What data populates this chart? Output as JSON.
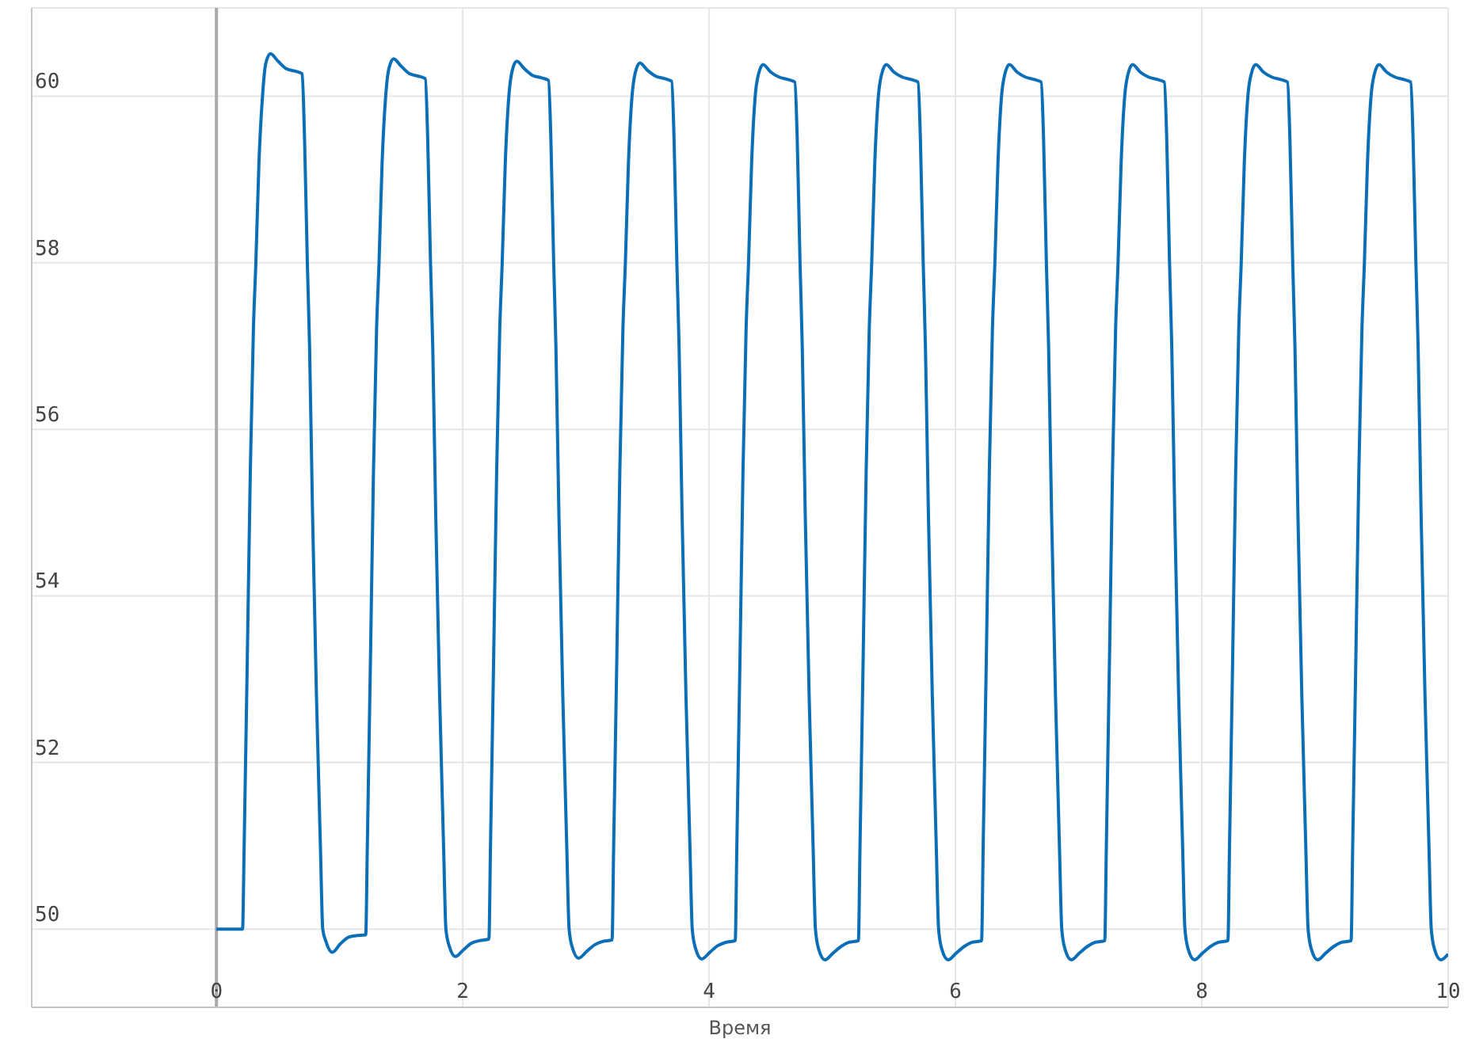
{
  "chart_data": {
    "type": "line",
    "xlabel": "Время",
    "x": [
      0,
      0.212,
      0.225,
      0.25,
      0.275,
      0.3,
      0.32,
      0.345,
      0.374,
      0.4,
      0.438,
      0.5,
      0.567,
      0.64,
      0.696,
      0.715,
      0.738,
      0.756,
      0.78,
      0.812,
      0.844,
      0.863,
      0.889,
      0.94,
      1.005,
      1.07,
      1.134,
      1.212,
      1.225,
      1.25,
      1.275,
      1.3,
      1.32,
      1.345,
      1.374,
      1.4,
      1.438,
      1.5,
      1.567,
      1.64,
      1.696,
      1.715,
      1.738,
      1.756,
      1.78,
      1.812,
      1.844,
      1.863,
      1.889,
      1.94,
      2.005,
      2.07,
      2.134,
      2.212,
      2.225,
      2.25,
      2.275,
      2.3,
      2.32,
      2.345,
      2.374,
      2.4,
      2.438,
      2.5,
      2.567,
      2.64,
      2.696,
      2.715,
      2.738,
      2.756,
      2.78,
      2.812,
      2.844,
      2.863,
      2.889,
      2.94,
      3.005,
      3.07,
      3.134,
      3.212,
      3.225,
      3.25,
      3.275,
      3.3,
      3.32,
      3.345,
      3.374,
      3.4,
      3.438,
      3.5,
      3.567,
      3.64,
      3.696,
      3.715,
      3.738,
      3.756,
      3.78,
      3.812,
      3.844,
      3.863,
      3.889,
      3.94,
      4.005,
      4.07,
      4.134,
      4.212,
      4.225,
      4.25,
      4.275,
      4.3,
      4.32,
      4.345,
      4.374,
      4.4,
      4.438,
      4.5,
      4.567,
      4.64,
      4.696,
      4.715,
      4.738,
      4.756,
      4.78,
      4.812,
      4.844,
      4.863,
      4.889,
      4.94,
      5.005,
      5.07,
      5.134,
      5.212,
      5.225,
      5.25,
      5.275,
      5.3,
      5.32,
      5.345,
      5.374,
      5.4,
      5.438,
      5.5,
      5.567,
      5.64,
      5.696,
      5.715,
      5.738,
      5.756,
      5.78,
      5.812,
      5.844,
      5.863,
      5.889,
      5.94,
      6.005,
      6.07,
      6.134,
      6.212,
      6.225,
      6.25,
      6.275,
      6.3,
      6.32,
      6.345,
      6.374,
      6.4,
      6.438,
      6.5,
      6.567,
      6.64,
      6.696,
      6.715,
      6.738,
      6.756,
      6.78,
      6.812,
      6.844,
      6.863,
      6.889,
      6.94,
      7.005,
      7.07,
      7.134,
      7.212,
      7.225,
      7.25,
      7.275,
      7.3,
      7.32,
      7.345,
      7.374,
      7.4,
      7.438,
      7.5,
      7.567,
      7.64,
      7.696,
      7.715,
      7.738,
      7.756,
      7.78,
      7.812,
      7.844,
      7.863,
      7.889,
      7.94,
      8.005,
      8.07,
      8.134,
      8.212,
      8.225,
      8.25,
      8.275,
      8.3,
      8.32,
      8.345,
      8.374,
      8.4,
      8.438,
      8.5,
      8.567,
      8.64,
      8.696,
      8.715,
      8.738,
      8.756,
      8.78,
      8.812,
      8.844,
      8.863,
      8.889,
      8.94,
      9.005,
      9.07,
      9.134,
      9.212,
      9.225,
      9.25,
      9.275,
      9.3,
      9.32,
      9.345,
      9.374,
      9.4,
      9.438,
      9.5,
      9.567,
      9.64,
      9.696,
      9.715,
      9.738,
      9.756,
      9.78,
      9.812,
      9.844,
      9.863,
      9.889,
      9.94,
      10
    ],
    "values": [
      50,
      50,
      51,
      53.2,
      55.5,
      57.2,
      58,
      59.2,
      60,
      60.39,
      60.51,
      60.42,
      60.33,
      60.3,
      60.27,
      59.5,
      58,
      57,
      55,
      52.8,
      51,
      50,
      49.85,
      49.72,
      49.82,
      49.9,
      49.92,
      49.93,
      51,
      53.2,
      55.5,
      57.2,
      58,
      59.2,
      60,
      60.33,
      60.45,
      60.36,
      60.27,
      60.24,
      60.21,
      59.5,
      58,
      57,
      55,
      52.8,
      51,
      50,
      49.8,
      49.67,
      49.75,
      49.83,
      49.86,
      49.88,
      51,
      53.2,
      55.5,
      57.2,
      58,
      59.2,
      60,
      60.3,
      60.42,
      60.33,
      60.25,
      60.22,
      60.19,
      59.5,
      58,
      57,
      55,
      52.8,
      51,
      50,
      49.78,
      49.65,
      49.73,
      49.81,
      49.85,
      49.87,
      51,
      53.2,
      55.5,
      57.2,
      58,
      59.2,
      60,
      60.28,
      60.4,
      60.31,
      60.24,
      60.21,
      60.18,
      59.5,
      58,
      57,
      55,
      52.8,
      51,
      50,
      49.77,
      49.64,
      49.72,
      49.8,
      49.84,
      49.86,
      51,
      53.2,
      55.5,
      57.2,
      58,
      59.2,
      60,
      60.26,
      60.38,
      60.29,
      60.23,
      60.2,
      60.17,
      59.5,
      58,
      57,
      55,
      52.8,
      51,
      50,
      49.76,
      49.63,
      49.71,
      49.79,
      49.84,
      49.86,
      51,
      53.2,
      55.5,
      57.2,
      58,
      59.2,
      60,
      60.26,
      60.38,
      60.29,
      60.23,
      60.2,
      60.17,
      59.5,
      58,
      57,
      55,
      52.8,
      51,
      50,
      49.76,
      49.63,
      49.71,
      49.79,
      49.84,
      49.86,
      51,
      53.2,
      55.5,
      57.2,
      58,
      59.2,
      60,
      60.26,
      60.38,
      60.29,
      60.23,
      60.2,
      60.17,
      59.5,
      58,
      57,
      55,
      52.8,
      51,
      50,
      49.76,
      49.63,
      49.71,
      49.79,
      49.84,
      49.86,
      51,
      53.2,
      55.5,
      57.2,
      58,
      59.2,
      60,
      60.26,
      60.38,
      60.29,
      60.23,
      60.2,
      60.17,
      59.5,
      58,
      57,
      55,
      52.8,
      51,
      50,
      49.76,
      49.63,
      49.71,
      49.79,
      49.84,
      49.86,
      51,
      53.2,
      55.5,
      57.2,
      58,
      59.2,
      60,
      60.26,
      60.38,
      60.29,
      60.23,
      60.2,
      60.17,
      59.5,
      58,
      57,
      55,
      52.8,
      51,
      50,
      49.76,
      49.63,
      49.71,
      49.79,
      49.84,
      49.86,
      51,
      53.2,
      55.5,
      57.2,
      58,
      59.2,
      60,
      60.26,
      60.38,
      60.29,
      60.23,
      60.2,
      60.17,
      59.5,
      58,
      57,
      55,
      52.8,
      51,
      50,
      49.76,
      49.63,
      49.7
    ],
    "color": "#0a6fb7",
    "marker": "none",
    "line_style": "solid",
    "xlim": [
      -1.5,
      10
    ],
    "xticks": [
      0,
      2,
      4,
      6,
      8,
      10
    ],
    "ylim": [
      49.06,
      61.06
    ],
    "yticks": [
      50,
      52,
      54,
      56,
      58,
      60
    ],
    "grid": true,
    "ref_lines": [
      {
        "axis": "x",
        "value": 0,
        "color": "#aaaaaa"
      }
    ]
  }
}
